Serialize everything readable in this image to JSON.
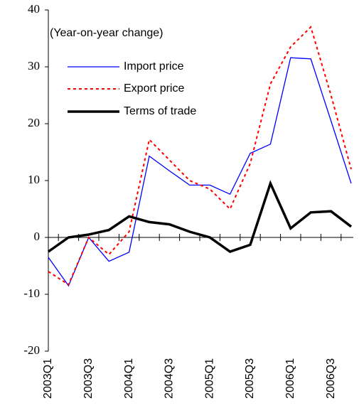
{
  "chart_data": {
    "type": "line",
    "annotation": "(Year-on-year change)",
    "categories": [
      "2003Q1",
      null,
      "2003Q3",
      null,
      "2004Q1",
      null,
      "2004Q3",
      null,
      "2005Q1",
      null,
      "2005Q3",
      null,
      "2006Q1",
      null,
      "2006Q3",
      null
    ],
    "series": [
      {
        "name": "Import price",
        "color": "#0000ff",
        "dash": "solid",
        "width": 1.3,
        "values": [
          -3.5,
          -8.5,
          0,
          -4.2,
          -2.6,
          14.3,
          11.7,
          9.2,
          9.2,
          7.6,
          14.8,
          16.4,
          31.6,
          31.4,
          20.5,
          9.5
        ]
      },
      {
        "name": "Export price",
        "color": "#ff0000",
        "dash": "dotted",
        "width": 2,
        "values": [
          -6,
          -8.3,
          0,
          -3,
          1,
          17.2,
          13.6,
          10,
          8.5,
          5,
          13,
          27,
          33.5,
          37,
          25,
          12
        ]
      },
      {
        "name": "Terms of trade",
        "color": "#000000",
        "dash": "solid",
        "width": 3.5,
        "values": [
          -2.5,
          0,
          0.5,
          1.3,
          3.7,
          2.7,
          2.3,
          1,
          0,
          -2.5,
          -1.3,
          9.5,
          1.6,
          4.4,
          4.6,
          1.9
        ]
      }
    ],
    "ylim": [
      -20,
      40
    ],
    "yticks": [
      40,
      30,
      20,
      10,
      0,
      -10,
      -20
    ],
    "grid": false
  }
}
